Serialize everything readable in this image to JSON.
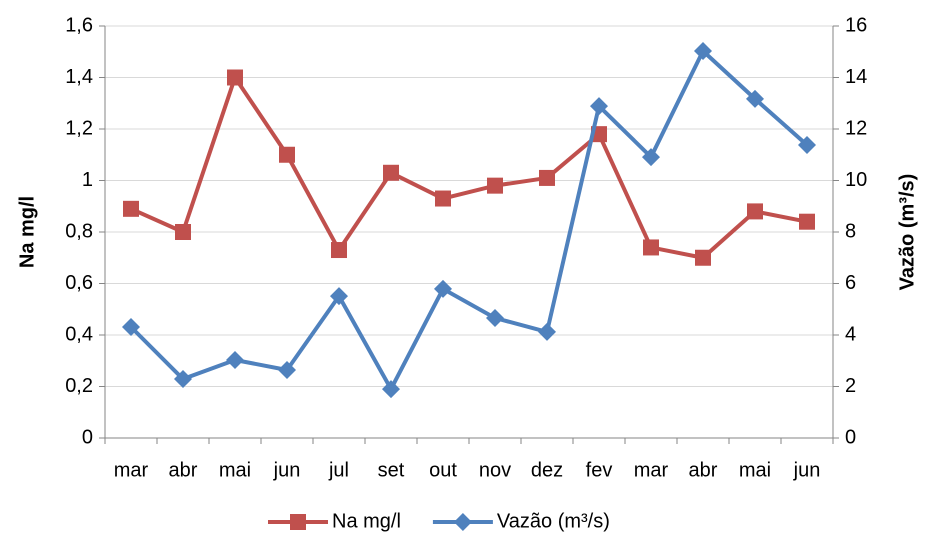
{
  "chart_data": {
    "type": "line",
    "categories": [
      "mar",
      "abr",
      "mai",
      "jun",
      "jul",
      "set",
      "out",
      "nov",
      "dez",
      "fev",
      "mar",
      "abr",
      "mai",
      "jun"
    ],
    "series": [
      {
        "name": "Na mg/l",
        "color": "#c0504d",
        "marker": "square",
        "values": [
          0.89,
          0.8,
          1.4,
          1.1,
          0.73,
          1.03,
          0.93,
          0.98,
          1.01,
          1.18,
          0.74,
          0.7,
          0.88,
          0.84
        ]
      },
      {
        "name": "Vazão (m³/s)",
        "color": "#4f81bd",
        "marker": "diamond",
        "axis": "y2",
        "values": [
          4.31,
          2.29,
          3.03,
          2.64,
          5.51,
          1.9,
          5.79,
          4.66,
          4.12,
          12.89,
          10.91,
          15.03,
          13.17,
          11.38
        ]
      }
    ],
    "ylabel": "Na mg/l",
    "y2label": "Vazão (m³/s)",
    "ylim": [
      0,
      1.6
    ],
    "yticks": [
      0,
      {
        "value": 0.2,
        "label": "0,2"
      },
      {
        "value": 0.4,
        "label": "0,4"
      },
      {
        "value": 0.6,
        "label": "0,6"
      },
      {
        "value": 0.8,
        "label": "0,8"
      },
      1,
      {
        "value": 1.2,
        "label": "1,2"
      },
      {
        "value": 1.4,
        "label": "1,4"
      },
      {
        "value": 1.6,
        "label": "1,6"
      }
    ],
    "y2lim": [
      0,
      16
    ],
    "y2ticks": [
      0,
      2,
      4,
      6,
      8,
      10,
      12,
      14,
      16
    ],
    "grid": true,
    "legend": "bottom"
  }
}
